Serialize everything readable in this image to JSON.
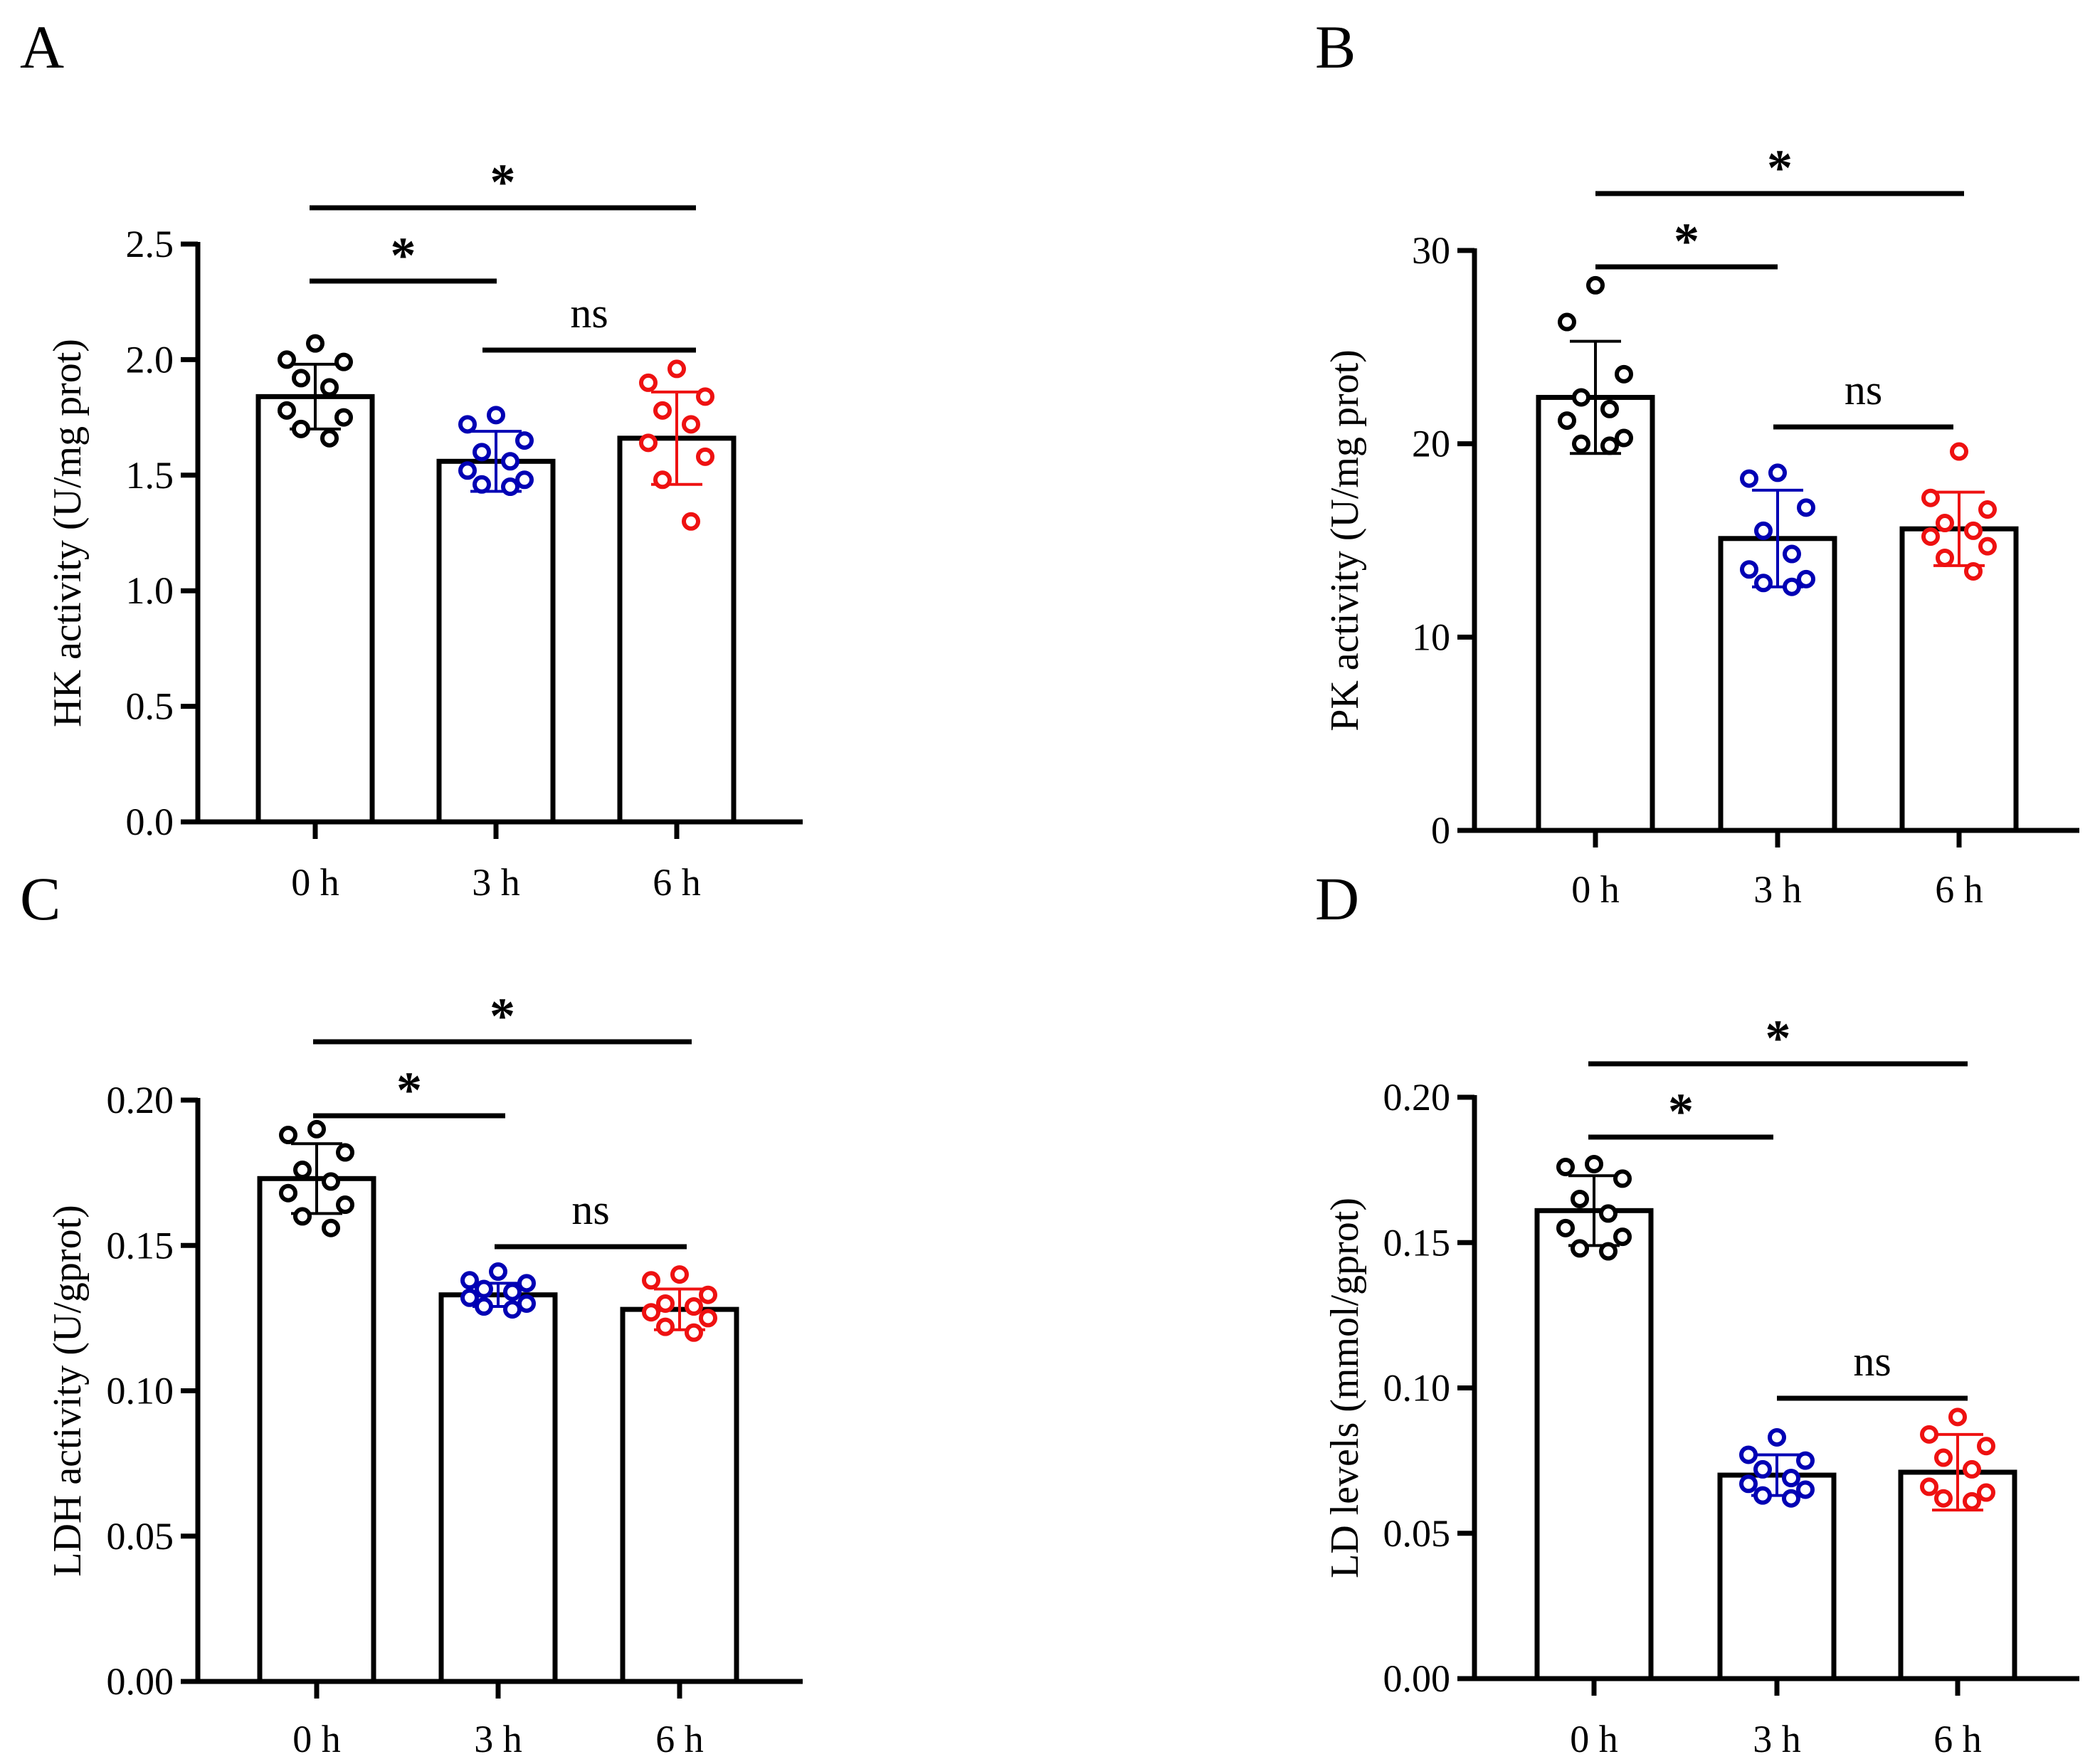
{
  "figure": {
    "panel_count": 4
  },
  "chart_data": [
    {
      "panel": "A",
      "type": "bar",
      "ylabel": "HK activity (U/mg prot)",
      "ylim": [
        0,
        2.5
      ],
      "yticks": [
        "0.0",
        "0.5",
        "1.0",
        "1.5",
        "2.0",
        "2.5"
      ],
      "categories": [
        "0 h",
        "3 h",
        "6 h"
      ],
      "series": [
        {
          "name": "mean",
          "values": [
            1.84,
            1.56,
            1.66
          ]
        }
      ],
      "sd": [
        0.14,
        0.13,
        0.2
      ],
      "points": [
        [
          2.07,
          2.0,
          1.99,
          1.92,
          1.88,
          1.78,
          1.75,
          1.7,
          1.66
        ],
        [
          1.76,
          1.72,
          1.65,
          1.6,
          1.56,
          1.52,
          1.48,
          1.46,
          1.45
        ],
        [
          1.96,
          1.9,
          1.84,
          1.78,
          1.72,
          1.64,
          1.58,
          1.48,
          1.3
        ]
      ],
      "point_colors": [
        "#000000",
        "#0000b4",
        "#ee1111"
      ],
      "significance": [
        {
          "from": 0,
          "to": 1,
          "label": "*"
        },
        {
          "from": 0,
          "to": 2,
          "label": "*"
        },
        {
          "from": 1,
          "to": 2,
          "label": "ns"
        }
      ]
    },
    {
      "panel": "B",
      "type": "bar",
      "ylabel": "PK activity (U/mg prot)",
      "ylim": [
        0,
        30
      ],
      "yticks": [
        "0",
        "10",
        "20",
        "30"
      ],
      "categories": [
        "0 h",
        "3 h",
        "6 h"
      ],
      "series": [
        {
          "name": "mean",
          "values": [
            22.4,
            15.1,
            15.6
          ]
        }
      ],
      "sd": [
        2.9,
        2.5,
        1.9
      ],
      "points": [
        [
          28.2,
          26.3,
          23.6,
          22.4,
          21.8,
          21.2,
          20.3,
          20.0,
          19.9
        ],
        [
          18.5,
          18.2,
          16.7,
          15.5,
          14.3,
          13.5,
          13.0,
          12.8,
          12.6
        ],
        [
          19.6,
          17.2,
          16.6,
          15.9,
          15.5,
          15.2,
          14.7,
          14.1,
          13.4
        ]
      ],
      "point_colors": [
        "#000000",
        "#0000b4",
        "#ee1111"
      ],
      "significance": [
        {
          "from": 0,
          "to": 1,
          "label": "*"
        },
        {
          "from": 0,
          "to": 2,
          "label": "*"
        },
        {
          "from": 1,
          "to": 2,
          "label": "ns"
        }
      ]
    },
    {
      "panel": "C",
      "type": "bar",
      "ylabel": "LDH activity (U/gprot)",
      "ylim": [
        0,
        0.2
      ],
      "yticks": [
        "0.00",
        "0.05",
        "0.10",
        "0.15",
        "0.20"
      ],
      "categories": [
        "0 h",
        "3 h",
        "6 h"
      ],
      "series": [
        {
          "name": "mean",
          "values": [
            0.173,
            0.133,
            0.128
          ]
        }
      ],
      "sd": [
        0.012,
        0.004,
        0.007
      ],
      "points": [
        [
          0.19,
          0.188,
          0.182,
          0.176,
          0.172,
          0.168,
          0.164,
          0.16,
          0.156
        ],
        [
          0.141,
          0.138,
          0.137,
          0.135,
          0.134,
          0.132,
          0.13,
          0.129,
          0.128
        ],
        [
          0.14,
          0.138,
          0.133,
          0.13,
          0.129,
          0.127,
          0.125,
          0.122,
          0.12
        ]
      ],
      "point_colors": [
        "#000000",
        "#0000b4",
        "#ee1111"
      ],
      "significance": [
        {
          "from": 0,
          "to": 1,
          "label": "*"
        },
        {
          "from": 0,
          "to": 2,
          "label": "*"
        },
        {
          "from": 1,
          "to": 2,
          "label": "ns"
        }
      ]
    },
    {
      "panel": "D",
      "type": "bar",
      "ylabel": "LD levels (mmol/gprot)",
      "ylim": [
        0,
        0.2
      ],
      "yticks": [
        "0.00",
        "0.05",
        "0.10",
        "0.15",
        "0.20"
      ],
      "categories": [
        "0 h",
        "3 h",
        "6 h"
      ],
      "series": [
        {
          "name": "mean",
          "values": [
            0.161,
            0.07,
            0.071
          ]
        }
      ],
      "sd": [
        0.012,
        0.007,
        0.013
      ],
      "points": [
        [
          0.177,
          0.176,
          0.172,
          0.165,
          0.16,
          0.155,
          0.152,
          0.148,
          0.147
        ],
        [
          0.083,
          0.077,
          0.075,
          0.072,
          0.069,
          0.067,
          0.065,
          0.063,
          0.062
        ],
        [
          0.09,
          0.084,
          0.08,
          0.076,
          0.072,
          0.066,
          0.064,
          0.062,
          0.061
        ]
      ],
      "point_colors": [
        "#000000",
        "#0000b4",
        "#ee1111"
      ],
      "significance": [
        {
          "from": 0,
          "to": 1,
          "label": "*"
        },
        {
          "from": 0,
          "to": 2,
          "label": "*"
        },
        {
          "from": 1,
          "to": 2,
          "label": "ns"
        }
      ]
    }
  ]
}
